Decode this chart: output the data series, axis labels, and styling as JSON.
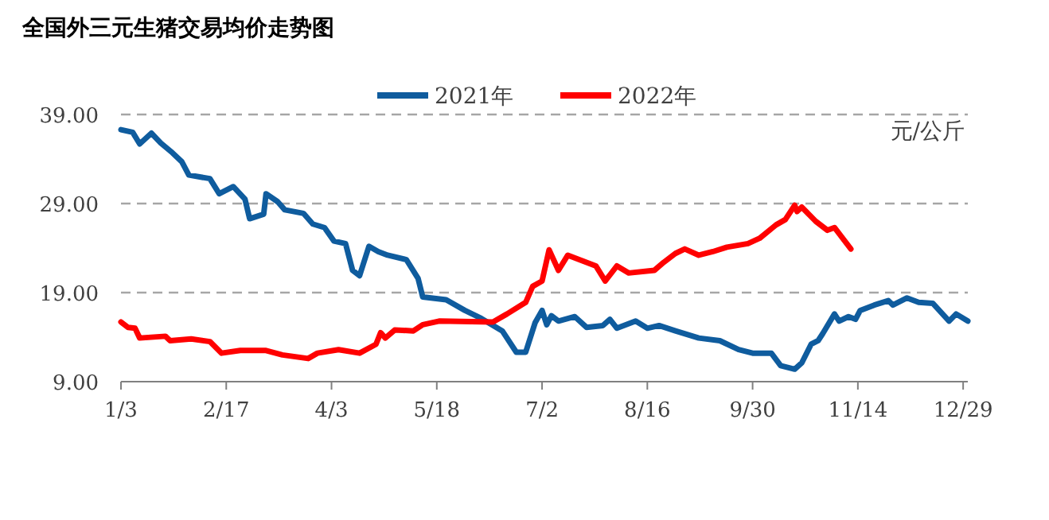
{
  "chart_data": {
    "type": "line",
    "title": "全国外三元生猪交易均价走势图",
    "ylabel": "元/公斤",
    "xlim": [
      "--01-03",
      "--12-31"
    ],
    "xticks": [
      {
        "value": "--01-03",
        "label": "1/3"
      },
      {
        "value": "--02-17",
        "label": "2/17"
      },
      {
        "value": "--04-03",
        "label": "4/3"
      },
      {
        "value": "--05-18",
        "label": "5/18"
      },
      {
        "value": "--07-02",
        "label": "7/2"
      },
      {
        "value": "--08-16",
        "label": "8/16"
      },
      {
        "value": "--09-30",
        "label": "9/30"
      },
      {
        "value": "--11-14",
        "label": "11/14"
      },
      {
        "value": "--12-29",
        "label": "12/29"
      }
    ],
    "ylim": [
      9,
      39
    ],
    "yticks": [
      {
        "value": 9,
        "label": "9.00"
      },
      {
        "value": 19,
        "label": "19.00"
      },
      {
        "value": 29,
        "label": "29.00"
      },
      {
        "value": 39,
        "label": "39.00"
      }
    ],
    "grid": "y",
    "legend": "top",
    "marker": "none",
    "line_style": "solid",
    "series": [
      {
        "name": "2021年",
        "color": "#0f5c9e",
        "x": [
          "--01-03",
          "--01-08",
          "--01-11",
          "--01-16",
          "--01-20",
          "--01-25",
          "--01-29",
          "--02-01",
          "--02-10",
          "--02-14",
          "--02-20",
          "--02-25",
          "--02-27",
          "--03-05",
          "--03-06",
          "--03-11",
          "--03-14",
          "--03-22",
          "--03-26",
          "--03-31",
          "--04-04",
          "--04-09",
          "--04-12",
          "--04-15",
          "--04-19",
          "--04-23",
          "--04-27",
          "--05-05",
          "--05-10",
          "--05-12",
          "--05-22",
          "--05-30",
          "--06-06",
          "--06-15",
          "--06-21",
          "--06-25",
          "--06-29",
          "--07-02",
          "--07-04",
          "--07-06",
          "--07-09",
          "--07-16",
          "--07-21",
          "--07-28",
          "--07-31",
          "--08-03",
          "--08-11",
          "--08-16",
          "--08-21",
          "--08-28",
          "--09-07",
          "--09-16",
          "--09-24",
          "--09-30",
          "--10-08",
          "--10-12",
          "--10-18",
          "--10-21",
          "--10-25",
          "--10-28",
          "--10-30",
          "--11-04",
          "--11-06",
          "--11-10",
          "--11-13",
          "--11-15",
          "--11-21",
          "--11-27",
          "--11-29",
          "--12-05",
          "--12-10",
          "--12-16",
          "--12-23",
          "--12-26",
          "--12-31"
        ],
        "values": [
          37.3,
          37.0,
          35.7,
          36.9,
          35.8,
          34.7,
          33.7,
          32.2,
          31.8,
          30.1,
          30.9,
          29.5,
          27.3,
          27.8,
          30.1,
          29.2,
          28.3,
          27.9,
          26.7,
          26.3,
          24.8,
          24.5,
          21.5,
          20.9,
          24.2,
          23.6,
          23.2,
          22.7,
          20.6,
          18.5,
          18.2,
          17.0,
          16.1,
          14.7,
          12.3,
          12.3,
          15.6,
          17.0,
          15.4,
          16.4,
          15.8,
          16.3,
          15.1,
          15.3,
          16.0,
          15.0,
          15.8,
          15.0,
          15.3,
          14.7,
          13.9,
          13.6,
          12.6,
          12.2,
          12.2,
          10.8,
          10.4,
          11.1,
          13.2,
          13.6,
          14.4,
          16.6,
          15.8,
          16.3,
          16.0,
          17.0,
          17.6,
          18.1,
          17.6,
          18.4,
          17.9,
          17.8,
          15.8,
          16.6,
          15.8
        ]
      },
      {
        "name": "2022年",
        "color": "#ff0000",
        "x": [
          "--01-03",
          "--01-06",
          "--01-09",
          "--01-11",
          "--01-22",
          "--01-24",
          "--02-02",
          "--02-10",
          "--02-15",
          "--02-23",
          "--03-06",
          "--03-13",
          "--03-24",
          "--03-28",
          "--04-06",
          "--04-15",
          "--04-22",
          "--04-24",
          "--04-26",
          "--04-30",
          "--05-08",
          "--05-12",
          "--05-19",
          "--06-11",
          "--06-17",
          "--06-25",
          "--06-28",
          "--07-02",
          "--07-05",
          "--07-09",
          "--07-13",
          "--07-19",
          "--07-25",
          "--07-29",
          "--08-03",
          "--08-08",
          "--08-19",
          "--08-23",
          "--08-28",
          "--09-01",
          "--09-07",
          "--09-13",
          "--09-19",
          "--09-28",
          "--10-03",
          "--10-10",
          "--10-14",
          "--10-18",
          "--10-19",
          "--10-21",
          "--10-27",
          "--11-01",
          "--11-04",
          "--11-11"
        ],
        "values": [
          15.7,
          15.1,
          15.0,
          13.9,
          14.1,
          13.6,
          13.8,
          13.5,
          12.2,
          12.5,
          12.5,
          12.0,
          11.6,
          12.2,
          12.6,
          12.2,
          13.2,
          14.5,
          13.9,
          14.8,
          14.7,
          15.4,
          15.8,
          15.7,
          16.6,
          17.9,
          19.7,
          20.3,
          23.8,
          21.5,
          23.2,
          22.6,
          22.0,
          20.3,
          22.0,
          21.2,
          21.5,
          22.4,
          23.4,
          23.9,
          23.2,
          23.6,
          24.1,
          24.5,
          25.1,
          26.6,
          27.2,
          28.8,
          28.1,
          28.6,
          27.0,
          26.0,
          26.3,
          23.9
        ]
      }
    ]
  }
}
